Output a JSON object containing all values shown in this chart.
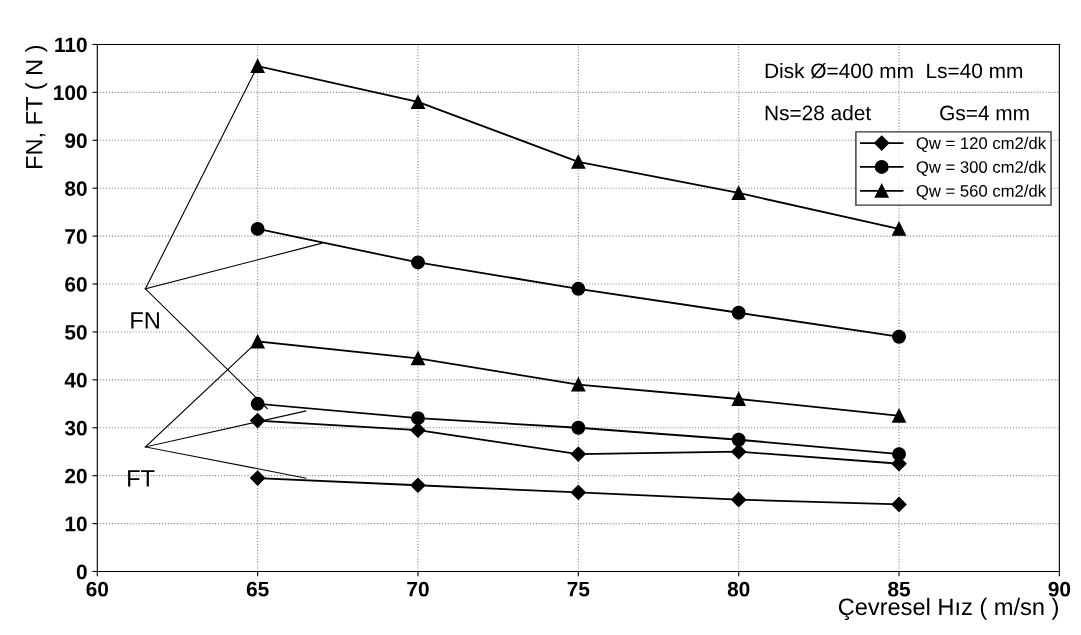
{
  "chart_data": {
    "type": "line",
    "xlabel": "Çevresel Hız ( m/sn )",
    "ylabel": "FN, FT ( N )",
    "x": [
      65,
      70,
      75,
      80,
      85
    ],
    "series": [
      {
        "name": "Qw = 120 cm2/dk",
        "color": "#000000",
        "marker": "diamond",
        "values": [
          31.5,
          29.5,
          24.5,
          25,
          22.5
        ]
      },
      {
        "name": "Qw = 300 cm2/dk",
        "color": "#000000",
        "marker": "circle",
        "values": [
          71.5,
          64.5,
          59,
          54,
          49
        ]
      },
      {
        "name": "Qw = 560 cm2/dk",
        "color": "#000000",
        "marker": "triangle",
        "values": [
          105.5,
          98,
          85.5,
          79,
          71.5
        ]
      },
      {
        "color": "#000000",
        "marker": "diamond",
        "values": [
          19.5,
          18,
          16.5,
          15,
          14
        ]
      },
      {
        "color": "#000000",
        "marker": "circle",
        "values": [
          35,
          32,
          30,
          27.5,
          24.5
        ]
      },
      {
        "color": "#000000",
        "marker": "triangle",
        "values": [
          48,
          44.5,
          39,
          36,
          32.5
        ]
      }
    ],
    "xlim": [
      60,
      90
    ],
    "xticks": [
      60,
      65,
      70,
      75,
      80,
      85,
      90
    ],
    "ylim": [
      0,
      110
    ],
    "yticks": [
      0,
      10,
      20,
      30,
      40,
      50,
      60,
      70,
      80,
      90,
      100,
      110
    ],
    "grid": true,
    "legend": "top right",
    "annotations": [
      "Disk Ø=400 mm  Ls=40 mm",
      "Ns=28 adet",
      "Gs=4 mm",
      {
        "text": "FN",
        "x": 65,
        "y": 105.5
      },
      {
        "text": "FT",
        "x": 65,
        "y": 48
      }
    ]
  }
}
